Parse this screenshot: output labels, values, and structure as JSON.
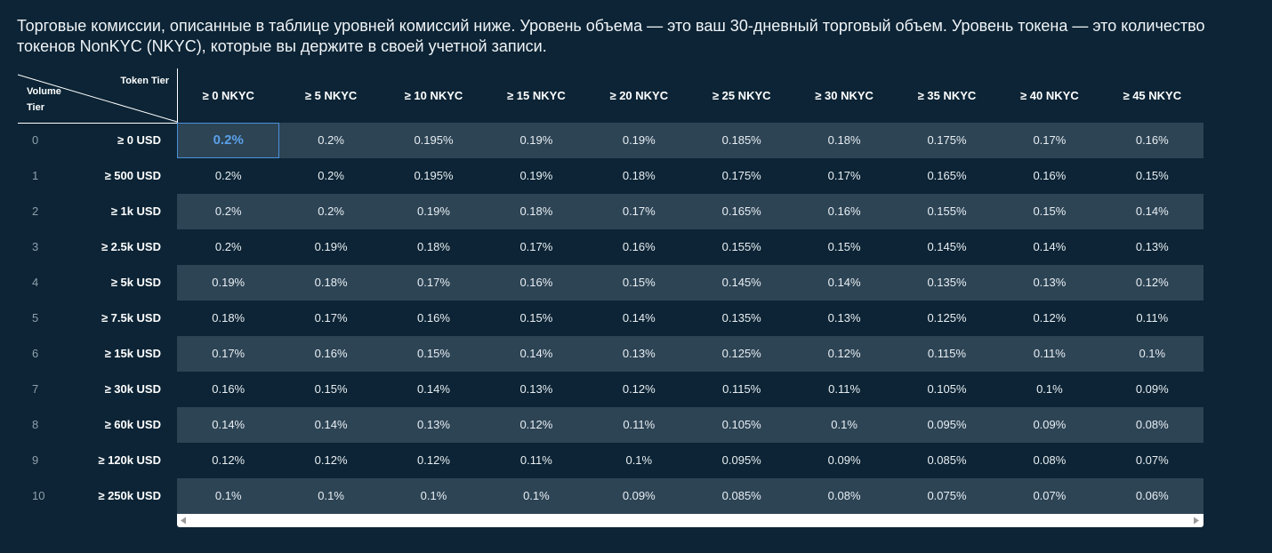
{
  "intro": "Торговые комиссии, описанные в таблице уровней комиссий ниже. Уровень объема — это ваш 30-дневный торговый объем. Уровень токена — это количество токенов NonKYC (NKYC), которые вы держите в своей учетной записи.",
  "table": {
    "corner": {
      "top": "Token Tier",
      "bottom": "Volume Tier"
    },
    "columns": [
      "≥ 0 NKYC",
      "≥ 5 NKYC",
      "≥ 10 NKYC",
      "≥ 15 NKYC",
      "≥ 20 NKYC",
      "≥ 25 NKYC",
      "≥ 30 NKYC",
      "≥ 35 NKYC",
      "≥ 40 NKYC",
      "≥ 45 NKYC"
    ],
    "rows": [
      {
        "tier": 0,
        "amount": "≥ 0",
        "unit": "USD",
        "cells": [
          "0.2%",
          "0.2%",
          "0.195%",
          "0.19%",
          "0.19%",
          "0.185%",
          "0.18%",
          "0.175%",
          "0.17%",
          "0.16%"
        ]
      },
      {
        "tier": 1,
        "amount": "≥ 500",
        "unit": "USD",
        "cells": [
          "0.2%",
          "0.2%",
          "0.195%",
          "0.19%",
          "0.18%",
          "0.175%",
          "0.17%",
          "0.165%",
          "0.16%",
          "0.15%"
        ]
      },
      {
        "tier": 2,
        "amount": "≥ 1k",
        "unit": "USD",
        "cells": [
          "0.2%",
          "0.2%",
          "0.19%",
          "0.18%",
          "0.17%",
          "0.165%",
          "0.16%",
          "0.155%",
          "0.15%",
          "0.14%"
        ]
      },
      {
        "tier": 3,
        "amount": "≥ 2.5k",
        "unit": "USD",
        "cells": [
          "0.2%",
          "0.19%",
          "0.18%",
          "0.17%",
          "0.16%",
          "0.155%",
          "0.15%",
          "0.145%",
          "0.14%",
          "0.13%"
        ]
      },
      {
        "tier": 4,
        "amount": "≥ 5k",
        "unit": "USD",
        "cells": [
          "0.19%",
          "0.18%",
          "0.17%",
          "0.16%",
          "0.15%",
          "0.145%",
          "0.14%",
          "0.135%",
          "0.13%",
          "0.12%"
        ]
      },
      {
        "tier": 5,
        "amount": "≥ 7.5k",
        "unit": "USD",
        "cells": [
          "0.18%",
          "0.17%",
          "0.16%",
          "0.15%",
          "0.14%",
          "0.135%",
          "0.13%",
          "0.125%",
          "0.12%",
          "0.11%"
        ]
      },
      {
        "tier": 6,
        "amount": "≥ 15k",
        "unit": "USD",
        "cells": [
          "0.17%",
          "0.16%",
          "0.15%",
          "0.14%",
          "0.13%",
          "0.125%",
          "0.12%",
          "0.115%",
          "0.11%",
          "0.1%"
        ]
      },
      {
        "tier": 7,
        "amount": "≥ 30k",
        "unit": "USD",
        "cells": [
          "0.16%",
          "0.15%",
          "0.14%",
          "0.13%",
          "0.12%",
          "0.115%",
          "0.11%",
          "0.105%",
          "0.1%",
          "0.09%"
        ]
      },
      {
        "tier": 8,
        "amount": "≥ 60k",
        "unit": "USD",
        "cells": [
          "0.14%",
          "0.14%",
          "0.13%",
          "0.12%",
          "0.11%",
          "0.105%",
          "0.1%",
          "0.095%",
          "0.09%",
          "0.08%"
        ]
      },
      {
        "tier": 9,
        "amount": "≥ 120k",
        "unit": "USD",
        "cells": [
          "0.12%",
          "0.12%",
          "0.12%",
          "0.11%",
          "0.1%",
          "0.095%",
          "0.09%",
          "0.085%",
          "0.08%",
          "0.07%"
        ]
      },
      {
        "tier": 10,
        "amount": "≥ 250k",
        "unit": "USD",
        "cells": [
          "0.1%",
          "0.1%",
          "0.1%",
          "0.1%",
          "0.09%",
          "0.085%",
          "0.08%",
          "0.075%",
          "0.07%",
          "0.06%"
        ]
      }
    ]
  }
}
